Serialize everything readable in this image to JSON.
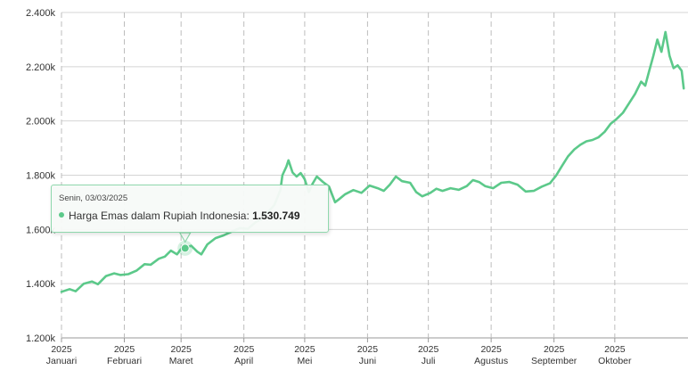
{
  "chart_data": {
    "type": "line",
    "title": "",
    "xlabel": "",
    "ylabel": "",
    "ylim": [
      1200000,
      2400000
    ],
    "y_ticks": [
      {
        "value": 1200000,
        "label": "1.200k"
      },
      {
        "value": 1400000,
        "label": "1.400k"
      },
      {
        "value": 1600000,
        "label": "1.600k"
      },
      {
        "value": 1800000,
        "label": "1.800k"
      },
      {
        "value": 2000000,
        "label": "2.000k"
      },
      {
        "value": 2200000,
        "label": "2.200k"
      },
      {
        "value": 2400000,
        "label": "2.400k"
      }
    ],
    "x_ticks": [
      {
        "month": 1,
        "year": "2025",
        "label": "Januari"
      },
      {
        "month": 2,
        "year": "2025",
        "label": "Februari"
      },
      {
        "month": 3,
        "year": "2025",
        "label": "Maret"
      },
      {
        "month": 4,
        "year": "2025",
        "label": "April"
      },
      {
        "month": 5,
        "year": "2025",
        "label": "Mei"
      },
      {
        "month": 6,
        "year": "2025",
        "label": "Juni"
      },
      {
        "month": 7,
        "year": "2025",
        "label": "Juli"
      },
      {
        "month": 8,
        "year": "2025",
        "label": "Agustus"
      },
      {
        "month": 9,
        "year": "2025",
        "label": "September"
      },
      {
        "month": 10,
        "year": "2025",
        "label": "Oktober"
      }
    ],
    "grid": true,
    "series": [
      {
        "name": "Harga Emas dalam Rupiah Indonesia",
        "color": "#5cc98a",
        "points": [
          [
            "2025-01-01",
            1370000
          ],
          [
            "2025-01-05",
            1380000
          ],
          [
            "2025-01-08",
            1372000
          ],
          [
            "2025-01-12",
            1400000
          ],
          [
            "2025-01-16",
            1408000
          ],
          [
            "2025-01-19",
            1398000
          ],
          [
            "2025-01-23",
            1428000
          ],
          [
            "2025-01-27",
            1438000
          ],
          [
            "2025-01-30",
            1432000
          ],
          [
            "2025-02-03",
            1435000
          ],
          [
            "2025-02-07",
            1448000
          ],
          [
            "2025-02-11",
            1472000
          ],
          [
            "2025-02-14",
            1470000
          ],
          [
            "2025-02-18",
            1492000
          ],
          [
            "2025-02-21",
            1500000
          ],
          [
            "2025-02-24",
            1522000
          ],
          [
            "2025-02-27",
            1508000
          ],
          [
            "2025-03-01",
            1528000
          ],
          [
            "2025-03-03",
            1530749
          ],
          [
            "2025-03-06",
            1540000
          ],
          [
            "2025-03-09",
            1518000
          ],
          [
            "2025-03-11",
            1508000
          ],
          [
            "2025-03-14",
            1545000
          ],
          [
            "2025-03-18",
            1568000
          ],
          [
            "2025-03-22",
            1578000
          ],
          [
            "2025-03-26",
            1592000
          ],
          [
            "2025-03-30",
            1605000
          ],
          [
            "2025-04-03",
            1602000
          ],
          [
            "2025-04-07",
            1628000
          ],
          [
            "2025-04-10",
            1640000
          ],
          [
            "2025-04-13",
            1665000
          ],
          [
            "2025-04-16",
            1690000
          ],
          [
            "2025-04-19",
            1745000
          ],
          [
            "2025-04-20",
            1800000
          ],
          [
            "2025-04-22",
            1832000
          ],
          [
            "2025-04-23",
            1855000
          ],
          [
            "2025-04-25",
            1810000
          ],
          [
            "2025-04-27",
            1795000
          ],
          [
            "2025-04-29",
            1808000
          ],
          [
            "2025-05-01",
            1785000
          ],
          [
            "2025-05-03",
            1738000
          ],
          [
            "2025-05-05",
            1770000
          ],
          [
            "2025-05-07",
            1795000
          ],
          [
            "2025-05-10",
            1775000
          ],
          [
            "2025-05-13",
            1758000
          ],
          [
            "2025-05-16",
            1700000
          ],
          [
            "2025-05-18",
            1712000
          ],
          [
            "2025-05-21",
            1730000
          ],
          [
            "2025-05-25",
            1745000
          ],
          [
            "2025-05-29",
            1735000
          ],
          [
            "2025-06-02",
            1762000
          ],
          [
            "2025-06-06",
            1752000
          ],
          [
            "2025-06-09",
            1742000
          ],
          [
            "2025-06-12",
            1765000
          ],
          [
            "2025-06-15",
            1795000
          ],
          [
            "2025-06-18",
            1778000
          ],
          [
            "2025-06-22",
            1772000
          ],
          [
            "2025-06-25",
            1738000
          ],
          [
            "2025-06-28",
            1722000
          ],
          [
            "2025-07-02",
            1735000
          ],
          [
            "2025-07-05",
            1750000
          ],
          [
            "2025-07-08",
            1742000
          ],
          [
            "2025-07-12",
            1752000
          ],
          [
            "2025-07-16",
            1746000
          ],
          [
            "2025-07-20",
            1760000
          ],
          [
            "2025-07-23",
            1782000
          ],
          [
            "2025-07-26",
            1775000
          ],
          [
            "2025-07-29",
            1760000
          ],
          [
            "2025-08-02",
            1752000
          ],
          [
            "2025-08-06",
            1772000
          ],
          [
            "2025-08-10",
            1775000
          ],
          [
            "2025-08-14",
            1765000
          ],
          [
            "2025-08-18",
            1740000
          ],
          [
            "2025-08-22",
            1742000
          ],
          [
            "2025-08-26",
            1758000
          ],
          [
            "2025-08-30",
            1770000
          ],
          [
            "2025-09-02",
            1798000
          ],
          [
            "2025-09-05",
            1835000
          ],
          [
            "2025-09-08",
            1870000
          ],
          [
            "2025-09-11",
            1895000
          ],
          [
            "2025-09-14",
            1912000
          ],
          [
            "2025-09-17",
            1925000
          ],
          [
            "2025-09-20",
            1930000
          ],
          [
            "2025-09-23",
            1940000
          ],
          [
            "2025-09-26",
            1960000
          ],
          [
            "2025-09-29",
            1990000
          ],
          [
            "2025-10-02",
            2008000
          ],
          [
            "2025-10-05",
            2030000
          ],
          [
            "2025-10-08",
            2065000
          ],
          [
            "2025-10-11",
            2100000
          ],
          [
            "2025-10-14",
            2145000
          ],
          [
            "2025-10-16",
            2130000
          ],
          [
            "2025-10-18",
            2185000
          ],
          [
            "2025-10-20",
            2240000
          ],
          [
            "2025-10-22",
            2300000
          ],
          [
            "2025-10-24",
            2255000
          ],
          [
            "2025-10-26",
            2328000
          ],
          [
            "2025-10-28",
            2240000
          ],
          [
            "2025-10-30",
            2195000
          ],
          [
            "2025-11-01",
            2205000
          ],
          [
            "2025-11-03",
            2185000
          ],
          [
            "2025-11-04",
            2120000
          ]
        ]
      }
    ],
    "tooltip": {
      "date": "Senin, 03/03/2025",
      "series_name": "Harga Emas dalam Rupiah Indonesia",
      "value_label": "1.530.749",
      "x": "2025-03-03",
      "y": 1530749
    }
  }
}
